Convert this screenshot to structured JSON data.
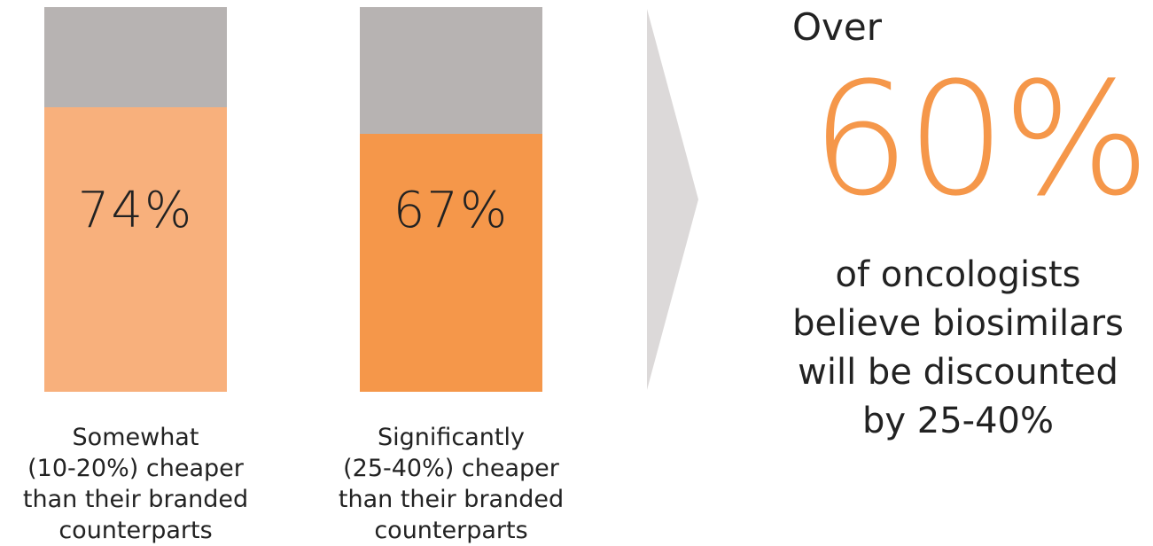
{
  "chart_data": {
    "type": "bar",
    "categories": [
      "Somewhat\n(10-20%) cheaper\nthan their branded\ncounterparts",
      "Significantly\n(25-40%) cheaper\nthan their branded\ncounterparts"
    ],
    "values": [
      74,
      67
    ],
    "value_labels": [
      "74%",
      "67%"
    ],
    "ylim": [
      0,
      100
    ],
    "colors": {
      "track": "#b7b3b2",
      "bars": [
        "#f8b07c",
        "#f5974a"
      ]
    }
  },
  "callout": {
    "prefix": "Over",
    "value": "60%",
    "text": "of oncologists\nbelieve biosimilars\nwill be discounted\nby 25-40%",
    "accent_color": "#f5974a"
  },
  "arrow_color": "#dcd9d9"
}
